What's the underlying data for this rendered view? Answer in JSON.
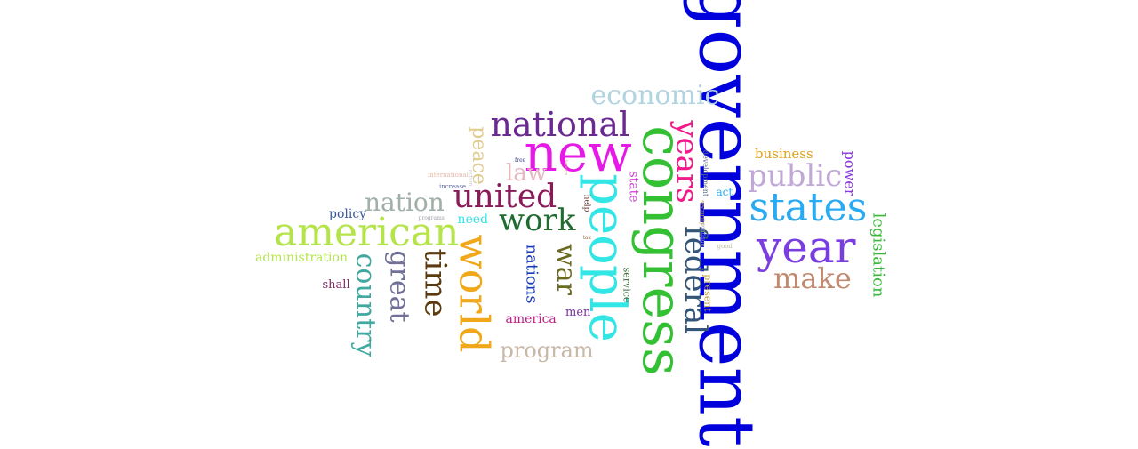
{
  "words": [
    {
      "text": "government",
      "color": "#0000dd",
      "orientation": "vertical"
    },
    {
      "text": "congress",
      "color": "#33c033",
      "orientation": "vertical"
    },
    {
      "text": "people",
      "color": "#33e6e6",
      "orientation": "vertical"
    },
    {
      "text": "new",
      "color": "#e619e6",
      "orientation": "horizontal"
    },
    {
      "text": "year",
      "color": "#7a3ee0",
      "orientation": "horizontal"
    },
    {
      "text": "states",
      "color": "#2aaaf0",
      "orientation": "horizontal"
    },
    {
      "text": "american",
      "color": "#b5e44a",
      "orientation": "horizontal"
    },
    {
      "text": "world",
      "color": "#f0a81a",
      "orientation": "vertical"
    },
    {
      "text": "national",
      "color": "#6a2a90",
      "orientation": "horizontal"
    },
    {
      "text": "years",
      "color": "#f01a8a",
      "orientation": "vertical"
    },
    {
      "text": "federal",
      "color": "#335577",
      "orientation": "vertical"
    },
    {
      "text": "united",
      "color": "#8a1a5a",
      "orientation": "horizontal"
    },
    {
      "text": "work",
      "color": "#1f6b30",
      "orientation": "horizontal"
    },
    {
      "text": "time",
      "color": "#5c3a0f",
      "orientation": "vertical"
    },
    {
      "text": "public",
      "color": "#c0a8d8",
      "orientation": "horizontal"
    },
    {
      "text": "economic",
      "color": "#b0d4e0",
      "orientation": "horizontal"
    },
    {
      "text": "make",
      "color": "#c08a70",
      "orientation": "horizontal"
    },
    {
      "text": "country",
      "color": "#40a8a0",
      "orientation": "vertical"
    },
    {
      "text": "great",
      "color": "#707098",
      "orientation": "vertical"
    },
    {
      "text": "war",
      "color": "#6b6b20",
      "orientation": "vertical"
    },
    {
      "text": "nation",
      "color": "#a0b0a8",
      "orientation": "horizontal"
    },
    {
      "text": "program",
      "color": "#c8b8a8",
      "orientation": "horizontal"
    },
    {
      "text": "peace",
      "color": "#e0cc90",
      "orientation": "vertical"
    },
    {
      "text": "law",
      "color": "#e8b8c0",
      "orientation": "horizontal"
    },
    {
      "text": "nations",
      "color": "#1a3ab8",
      "orientation": "vertical"
    },
    {
      "text": "legislation",
      "color": "#3ab83a",
      "orientation": "vertical"
    },
    {
      "text": "power",
      "color": "#8a3ae0",
      "orientation": "vertical"
    },
    {
      "text": "business",
      "color": "#e0a020",
      "orientation": "horizontal"
    },
    {
      "text": "administration",
      "color": "#b5e44a",
      "orientation": "horizontal"
    },
    {
      "text": "policy",
      "color": "#3a5a9a",
      "orientation": "horizontal"
    },
    {
      "text": "need",
      "color": "#33e6e6",
      "orientation": "horizontal"
    },
    {
      "text": "state",
      "color": "#d040d0",
      "orientation": "vertical"
    },
    {
      "text": "america",
      "color": "#c0208a",
      "orientation": "horizontal"
    },
    {
      "text": "men",
      "color": "#7a30a0",
      "orientation": "horizontal"
    },
    {
      "text": "shall",
      "color": "#7a2a60",
      "orientation": "horizontal"
    },
    {
      "text": "service",
      "color": "#3a6a3a",
      "orientation": "vertical"
    },
    {
      "text": "present",
      "color": "#c0a050",
      "orientation": "vertical"
    },
    {
      "text": "act",
      "color": "#2aaaf0",
      "orientation": "horizontal"
    },
    {
      "text": "help",
      "color": "#6a3a3a",
      "orientation": "vertical"
    },
    {
      "text": "development",
      "color": "#5a6a8a",
      "orientation": "vertical"
    },
    {
      "text": "security",
      "color": "#c0a050",
      "orientation": "vertical"
    },
    {
      "text": "continue",
      "color": "#9a9ab0",
      "orientation": "vertical"
    },
    {
      "text": "good",
      "color": "#c0c0a0",
      "orientation": "horizontal"
    },
    {
      "text": "international",
      "color": "#e8b8a8",
      "orientation": "horizontal"
    },
    {
      "text": "increase",
      "color": "#5a6aa0",
      "orientation": "horizontal"
    },
    {
      "text": "programs",
      "color": "#a0a0b0",
      "orientation": "horizontal"
    },
    {
      "text": "action",
      "color": "#c8c8d8",
      "orientation": "vertical"
    },
    {
      "text": "free",
      "color": "#3a3a8a",
      "orientation": "horizontal"
    },
    {
      "text": "foreign",
      "color": "#d0b890",
      "orientation": "vertical"
    },
    {
      "text": "tax",
      "color": "#a07a50",
      "orientation": "horizontal"
    }
  ]
}
